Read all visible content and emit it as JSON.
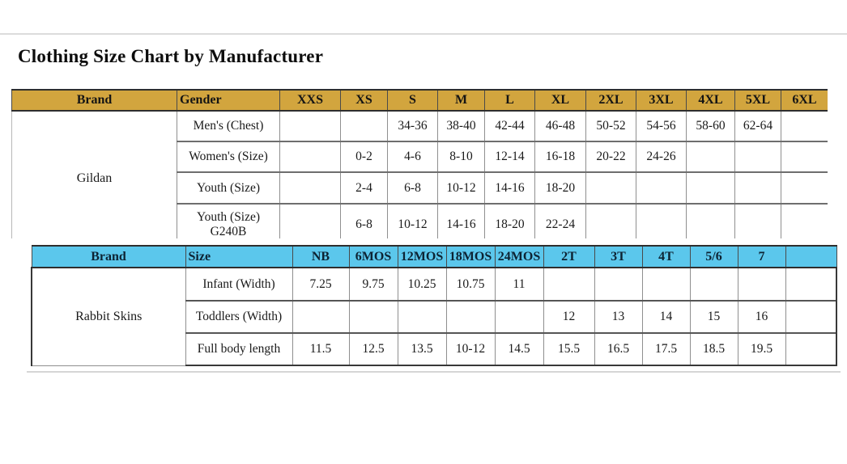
{
  "page": {
    "title": "Clothing Size Chart by Manufacturer"
  },
  "colors": {
    "table1_header_bg": "#D2A53E",
    "table2_header_bg": "#5BC7EC",
    "table2_header_text": "#0d2333"
  },
  "table1": {
    "brand": "Gildan",
    "columns": [
      "Brand",
      "Gender",
      "XXS",
      "XS",
      "S",
      "M",
      "L",
      "XL",
      "2XL",
      "3XL",
      "4XL",
      "5XL",
      "6XL"
    ],
    "rows": [
      {
        "label": "Men's (Chest)",
        "values": [
          "",
          "",
          "34-36",
          "38-40",
          "42-44",
          "46-48",
          "50-52",
          "54-56",
          "58-60",
          "62-64",
          ""
        ]
      },
      {
        "label": "Women's (Size)",
        "values": [
          "",
          "0-2",
          "4-6",
          "8-10",
          "12-14",
          "16-18",
          "20-22",
          "24-26",
          "",
          "",
          ""
        ]
      },
      {
        "label": "Youth (Size)",
        "values": [
          "",
          "2-4",
          "6-8",
          "10-12",
          "14-16",
          "18-20",
          "",
          "",
          "",
          "",
          ""
        ]
      },
      {
        "label": "Youth (Size)\nG240B",
        "values": [
          "",
          "6-8",
          "10-12",
          "14-16",
          "18-20",
          "22-24",
          "",
          "",
          "",
          "",
          ""
        ]
      }
    ]
  },
  "table2": {
    "brand": "Rabbit Skins",
    "columns": [
      "Brand",
      "Size",
      "NB",
      "6MOS",
      "12MOS",
      "18MOS",
      "24MOS",
      "2T",
      "3T",
      "4T",
      "5/6",
      "7",
      ""
    ],
    "rows": [
      {
        "label": "Infant (Width)",
        "values": [
          "7.25",
          "9.75",
          "10.25",
          "10.75",
          "11",
          "",
          "",
          "",
          "",
          "",
          ""
        ]
      },
      {
        "label": "Toddlers (Width)",
        "values": [
          "",
          "",
          "",
          "",
          "",
          "12",
          "13",
          "14",
          "15",
          "16",
          ""
        ]
      },
      {
        "label": "Full body length",
        "values": [
          "11.5",
          "12.5",
          "13.5",
          "10-12",
          "14.5",
          "15.5",
          "16.5",
          "17.5",
          "18.5",
          "19.5",
          ""
        ]
      }
    ]
  }
}
